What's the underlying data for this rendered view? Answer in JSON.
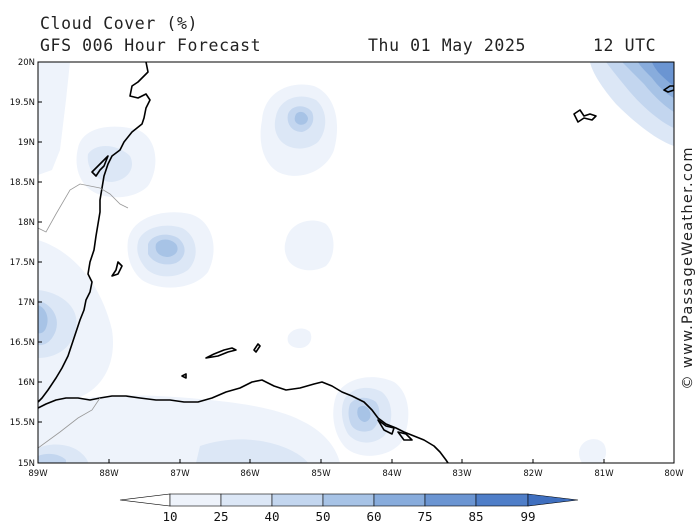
{
  "header": {
    "title": "Cloud Cover (%)",
    "model": "GFS 006 Hour Forecast",
    "date": "Thu 01 May 2025",
    "time": "12 UTC"
  },
  "watermark": "© www.PassageWeather.com",
  "map": {
    "lon_range": [
      -89,
      -80
    ],
    "lat_range": [
      15,
      20
    ],
    "lat_labels": [
      "20N",
      "19.5N",
      "19N",
      "18.5N",
      "18N",
      "17.5N",
      "17N",
      "16.5N",
      "16N",
      "15.5N",
      "15N"
    ],
    "lon_labels": [
      "89W",
      "88W",
      "87W",
      "86W",
      "85W",
      "84W",
      "83W",
      "82W",
      "81W",
      "80W"
    ]
  },
  "colorbar": {
    "labels": [
      "10",
      "25",
      "40",
      "50",
      "60",
      "75",
      "85",
      "99"
    ],
    "colors": [
      "#ffffff",
      "#eef3fb",
      "#dce7f6",
      "#c3d6ef",
      "#a7c3e6",
      "#88acdc",
      "#6b95d2",
      "#4f7ec8",
      "#3f6fbf"
    ]
  }
}
